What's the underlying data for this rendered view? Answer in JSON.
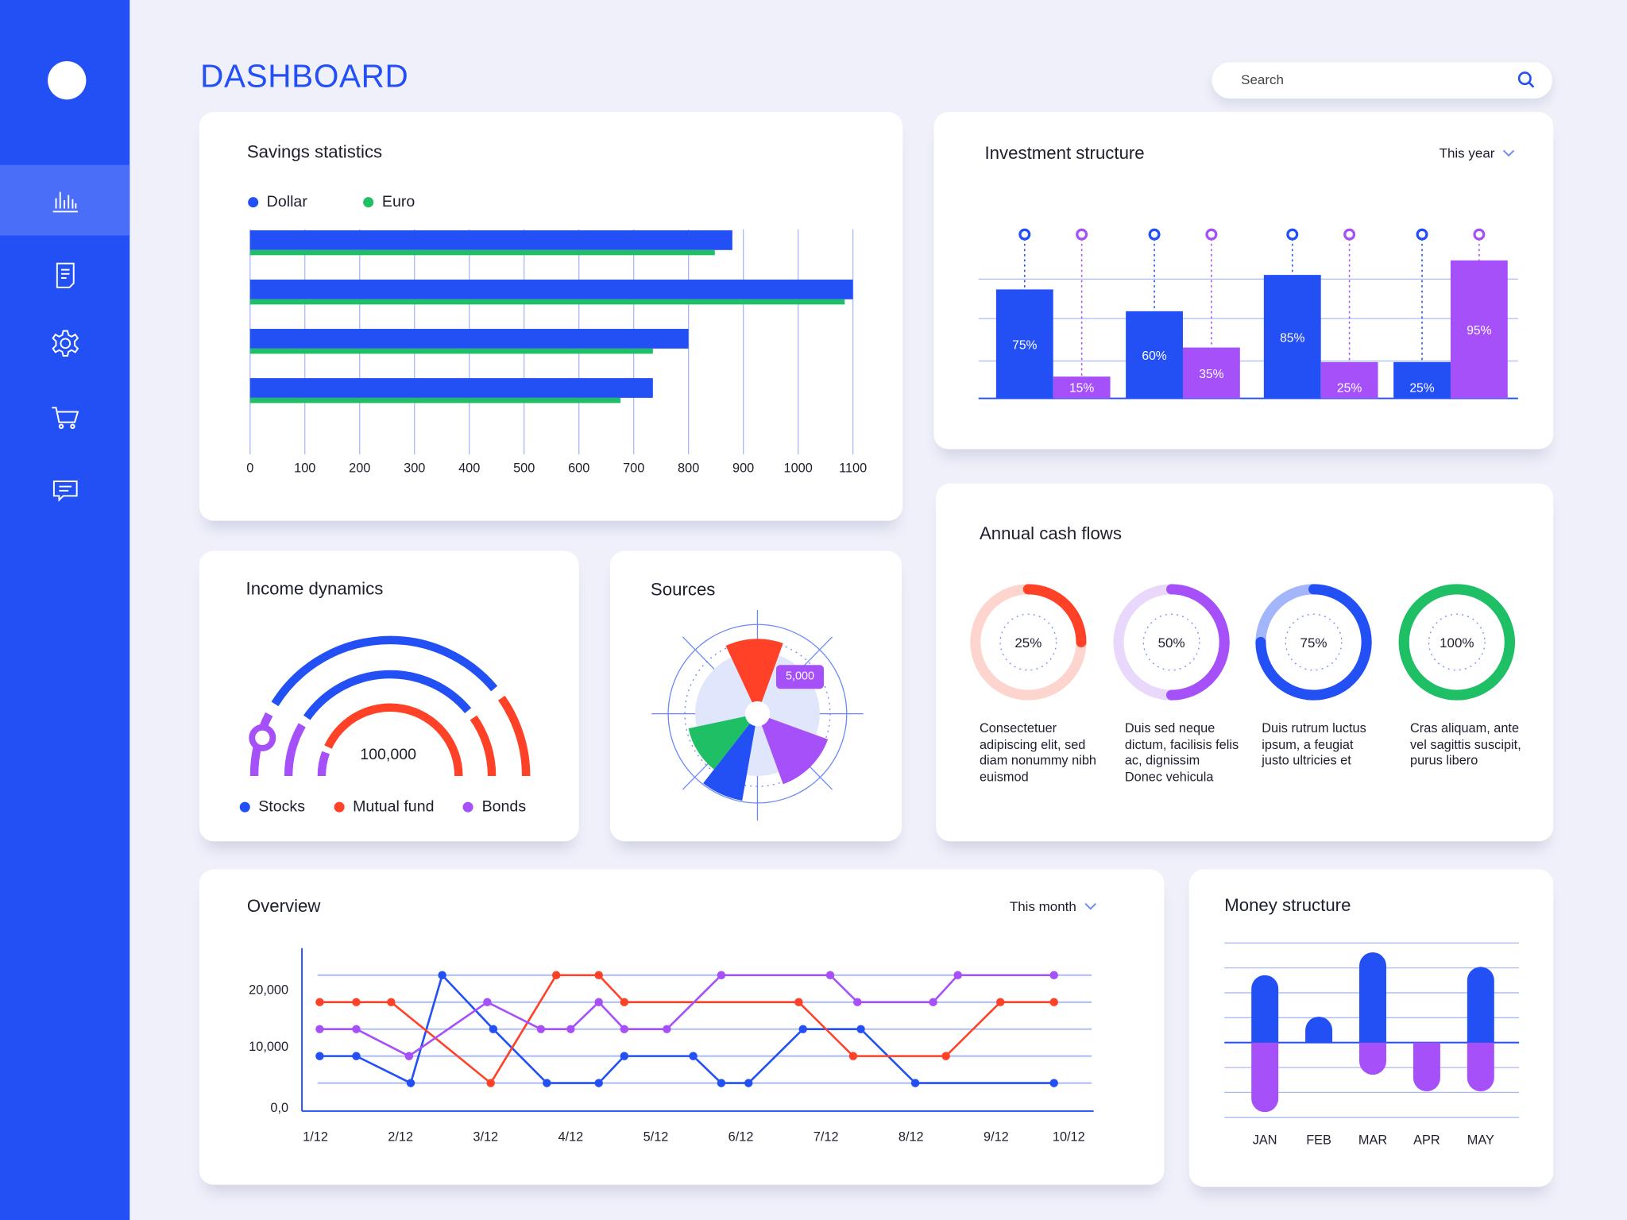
{
  "header": {
    "title": "DASHBOARD",
    "search_placeholder": "Search"
  },
  "sidebar": {
    "items": [
      {
        "icon": "bar-chart-icon",
        "active": true
      },
      {
        "icon": "document-icon"
      },
      {
        "icon": "gear-icon"
      },
      {
        "icon": "cart-icon"
      },
      {
        "icon": "chat-icon"
      }
    ]
  },
  "colors": {
    "blue": "#2350F5",
    "green": "#1FBF66",
    "red": "#FF4128",
    "purple": "#A550F8",
    "sidebar": "#2350F5"
  },
  "savings": {
    "title": "Savings statistics",
    "legend": [
      "Dollar",
      "Euro"
    ]
  },
  "investment": {
    "title": "Investment structure",
    "period": "This year"
  },
  "income": {
    "title": "Income dynamics",
    "center_value": "100,000",
    "legend": [
      "Stocks",
      "Mutual fund",
      "Bonds"
    ]
  },
  "sources": {
    "title": "Sources",
    "tooltip": "5,000"
  },
  "annual": {
    "title": "Annual cash flows",
    "items": [
      {
        "percent": "25%",
        "value": 25,
        "color": "#FF4128",
        "track": "#FDD5CE",
        "text": "Consectetuer adipiscing elit, sed diam nonummy nibh euismod"
      },
      {
        "percent": "50%",
        "value": 50,
        "color": "#A550F8",
        "track": "#E9D8FC",
        "text": "Duis sed neque dictum, facilisis felis ac, dignissim Donec vehicula"
      },
      {
        "percent": "75%",
        "value": 75,
        "color": "#2350F5",
        "track": "#A3B5FB",
        "text": "Duis rutrum luctus ipsum, a feugiat justo ultricies et"
      },
      {
        "percent": "100%",
        "value": 100,
        "color": "#1FBF66",
        "track": "#1FBF66",
        "text": "Cras aliquam, ante vel sagittis suscipit, purus libero"
      }
    ]
  },
  "overview": {
    "title": "Overview",
    "period": "This month"
  },
  "money": {
    "title": "Money structure"
  },
  "chart_data": [
    {
      "id": "savings",
      "type": "bar",
      "orientation": "horizontal",
      "xlim": [
        0,
        1100
      ],
      "xticks": [
        "0",
        "100",
        "200",
        "300",
        "400",
        "500",
        "600",
        "700",
        "800",
        "900",
        "1000",
        "1100"
      ],
      "series": [
        {
          "name": "Dollar",
          "color": "#2350F5",
          "values": [
            880,
            1100,
            800,
            735
          ]
        },
        {
          "name": "Euro",
          "color": "#1FBF66",
          "values": [
            848,
            1085,
            735,
            676
          ]
        }
      ],
      "grid": true,
      "legend": "top-left"
    },
    {
      "id": "investment",
      "type": "bar",
      "ylim": [
        0,
        100
      ],
      "series": [
        {
          "color": "#2350F5",
          "values": [
            75,
            60,
            85,
            25
          ],
          "labels": [
            "75%",
            "60%",
            "85%",
            "25%"
          ]
        },
        {
          "color": "#A550F8",
          "values": [
            15,
            35,
            25,
            95
          ],
          "labels": [
            "15%",
            "35%",
            "25%",
            "95%"
          ]
        }
      ],
      "grid": true
    },
    {
      "id": "income",
      "type": "gauge",
      "center_label": "100,000",
      "series": [
        {
          "name": "Stocks",
          "color": "#2350F5"
        },
        {
          "name": "Mutual fund",
          "color": "#FF4128"
        },
        {
          "name": "Bonds",
          "color": "#A550F8"
        }
      ]
    },
    {
      "id": "sources",
      "type": "polar",
      "annotation": "5,000",
      "slices": [
        {
          "color": "#FF4128",
          "start": -115,
          "end": -70,
          "r": 0.85
        },
        {
          "color": "#A550F8",
          "start": 20,
          "end": 70,
          "r": 0.85
        },
        {
          "color": "#2350F5",
          "start": 100,
          "end": 128,
          "r": 1.0
        },
        {
          "color": "#1FBF66",
          "start": 128,
          "end": 168,
          "r": 0.8
        }
      ]
    },
    {
      "id": "overview",
      "type": "line",
      "xticks": [
        "1/12",
        "2/12",
        "3/12",
        "4/12",
        "5/12",
        "6/12",
        "7/12",
        "8/12",
        "9/12",
        "10/12"
      ],
      "yticks": [
        "0,0",
        "10,000",
        "20,000"
      ],
      "ylim": [
        0,
        27000
      ],
      "grid": true,
      "series": [
        {
          "color": "#2350F5",
          "points": [
            [
              1.05,
              8500
            ],
            [
              1.48,
              8500
            ],
            [
              2.12,
              4000
            ],
            [
              2.49,
              22500
            ],
            [
              3.09,
              13000
            ],
            [
              3.72,
              4000
            ],
            [
              4.33,
              4000
            ],
            [
              4.63,
              8500
            ],
            [
              5.44,
              8500
            ],
            [
              5.77,
              4000
            ],
            [
              6.09,
              4000
            ],
            [
              6.73,
              13000
            ],
            [
              7.41,
              13000
            ],
            [
              8.05,
              4000
            ],
            [
              9.68,
              4000
            ]
          ]
        },
        {
          "color": "#FF4128",
          "points": [
            [
              1.05,
              17500
            ],
            [
              1.48,
              17500
            ],
            [
              1.89,
              17500
            ],
            [
              3.06,
              4000
            ],
            [
              3.83,
              22500
            ],
            [
              4.33,
              22500
            ],
            [
              4.63,
              17500
            ],
            [
              6.68,
              17500
            ],
            [
              7.32,
              8500
            ],
            [
              8.41,
              8500
            ],
            [
              9.05,
              17500
            ],
            [
              9.68,
              17500
            ]
          ]
        },
        {
          "color": "#A550F8",
          "points": [
            [
              1.05,
              13000
            ],
            [
              1.48,
              13000
            ],
            [
              2.1,
              8500
            ],
            [
              3.02,
              17500
            ],
            [
              3.65,
              13000
            ],
            [
              4.0,
              13000
            ],
            [
              4.33,
              17500
            ],
            [
              4.63,
              13000
            ],
            [
              5.13,
              13000
            ],
            [
              5.77,
              22500
            ],
            [
              7.05,
              22500
            ],
            [
              7.37,
              17500
            ],
            [
              8.26,
              17500
            ],
            [
              8.55,
              22500
            ],
            [
              9.68,
              22500
            ]
          ]
        }
      ]
    },
    {
      "id": "money",
      "type": "bar",
      "categories": [
        "JAN",
        "FEB",
        "MAR",
        "APR",
        "MAY"
      ],
      "series": [
        {
          "color": "#2350F5",
          "values": [
            65,
            25,
            87,
            0,
            73
          ]
        },
        {
          "color": "#A550F8",
          "values": [
            -67,
            0,
            -31,
            -47,
            -47
          ]
        }
      ]
    }
  ]
}
